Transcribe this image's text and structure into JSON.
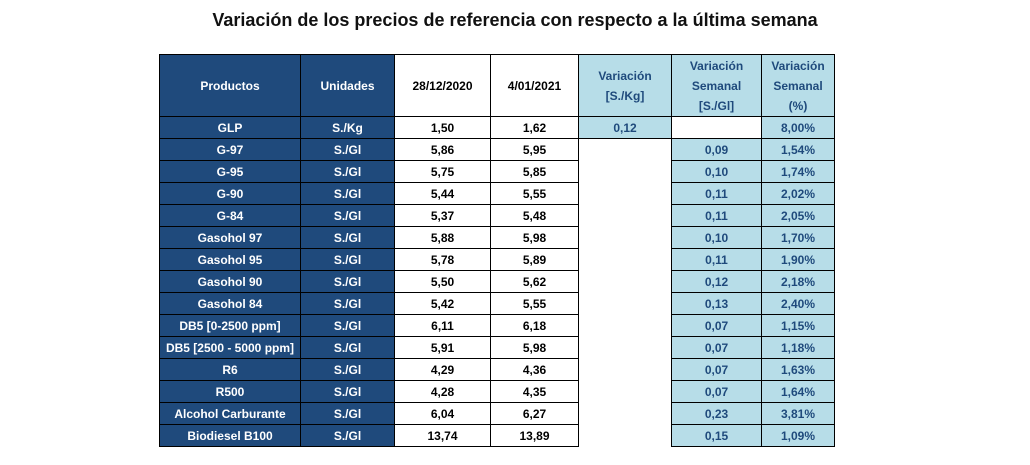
{
  "title": "Variación de los precios de referencia con respecto a la última semana",
  "headers": {
    "productos": "Productos",
    "unidades": "Unidades",
    "fecha1": "28/12/2020",
    "fecha2": "4/01/2021",
    "var_kg": [
      "Variación",
      "[S./Kg]"
    ],
    "var_sem": [
      "Variación",
      "Semanal",
      "[S./Gl]"
    ],
    "var_pct": [
      "Variación",
      "Semanal",
      "(%)"
    ]
  },
  "rows": [
    {
      "producto": "GLP",
      "unidad": "S./Kg",
      "p1": "1,50",
      "p2": "1,62",
      "var_kg": "0,12",
      "var_sem": "",
      "var_pct": "8,00%"
    },
    {
      "producto": "G-97",
      "unidad": "S./Gl",
      "p1": "5,86",
      "p2": "5,95",
      "var_kg": "",
      "var_sem": "0,09",
      "var_pct": "1,54%"
    },
    {
      "producto": "G-95",
      "unidad": "S./Gl",
      "p1": "5,75",
      "p2": "5,85",
      "var_kg": "",
      "var_sem": "0,10",
      "var_pct": "1,74%"
    },
    {
      "producto": "G-90",
      "unidad": "S./Gl",
      "p1": "5,44",
      "p2": "5,55",
      "var_kg": "",
      "var_sem": "0,11",
      "var_pct": "2,02%"
    },
    {
      "producto": "G-84",
      "unidad": "S./Gl",
      "p1": "5,37",
      "p2": "5,48",
      "var_kg": "",
      "var_sem": "0,11",
      "var_pct": "2,05%"
    },
    {
      "producto": "Gasohol 97",
      "unidad": "S./Gl",
      "p1": "5,88",
      "p2": "5,98",
      "var_kg": "",
      "var_sem": "0,10",
      "var_pct": "1,70%"
    },
    {
      "producto": "Gasohol 95",
      "unidad": "S./Gl",
      "p1": "5,78",
      "p2": "5,89",
      "var_kg": "",
      "var_sem": "0,11",
      "var_pct": "1,90%"
    },
    {
      "producto": "Gasohol 90",
      "unidad": "S./Gl",
      "p1": "5,50",
      "p2": "5,62",
      "var_kg": "",
      "var_sem": "0,12",
      "var_pct": "2,18%"
    },
    {
      "producto": "Gasohol 84",
      "unidad": "S./Gl",
      "p1": "5,42",
      "p2": "5,55",
      "var_kg": "",
      "var_sem": "0,13",
      "var_pct": "2,40%"
    },
    {
      "producto": "DB5 [0-2500 ppm]",
      "unidad": "S./Gl",
      "p1": "6,11",
      "p2": "6,18",
      "var_kg": "",
      "var_sem": "0,07",
      "var_pct": "1,15%"
    },
    {
      "producto": "DB5 [2500 - 5000 ppm]",
      "unidad": "S./Gl",
      "p1": "5,91",
      "p2": "5,98",
      "var_kg": "",
      "var_sem": "0,07",
      "var_pct": "1,18%"
    },
    {
      "producto": "R6",
      "unidad": "S./Gl",
      "p1": "4,29",
      "p2": "4,36",
      "var_kg": "",
      "var_sem": "0,07",
      "var_pct": "1,63%"
    },
    {
      "producto": "R500",
      "unidad": "S./Gl",
      "p1": "4,28",
      "p2": "4,35",
      "var_kg": "",
      "var_sem": "0,07",
      "var_pct": "1,64%"
    },
    {
      "producto": "Alcohol Carburante",
      "unidad": "S./Gl",
      "p1": "6,04",
      "p2": "6,27",
      "var_kg": "",
      "var_sem": "0,23",
      "var_pct": "3,81%"
    },
    {
      "producto": "Biodiesel B100",
      "unidad": "S./Gl",
      "p1": "13,74",
      "p2": "13,89",
      "var_kg": "",
      "var_sem": "0,15",
      "var_pct": "1,09%"
    }
  ],
  "colors": {
    "header_dark": "#1f4a7c",
    "header_light": "#b7dde8"
  }
}
